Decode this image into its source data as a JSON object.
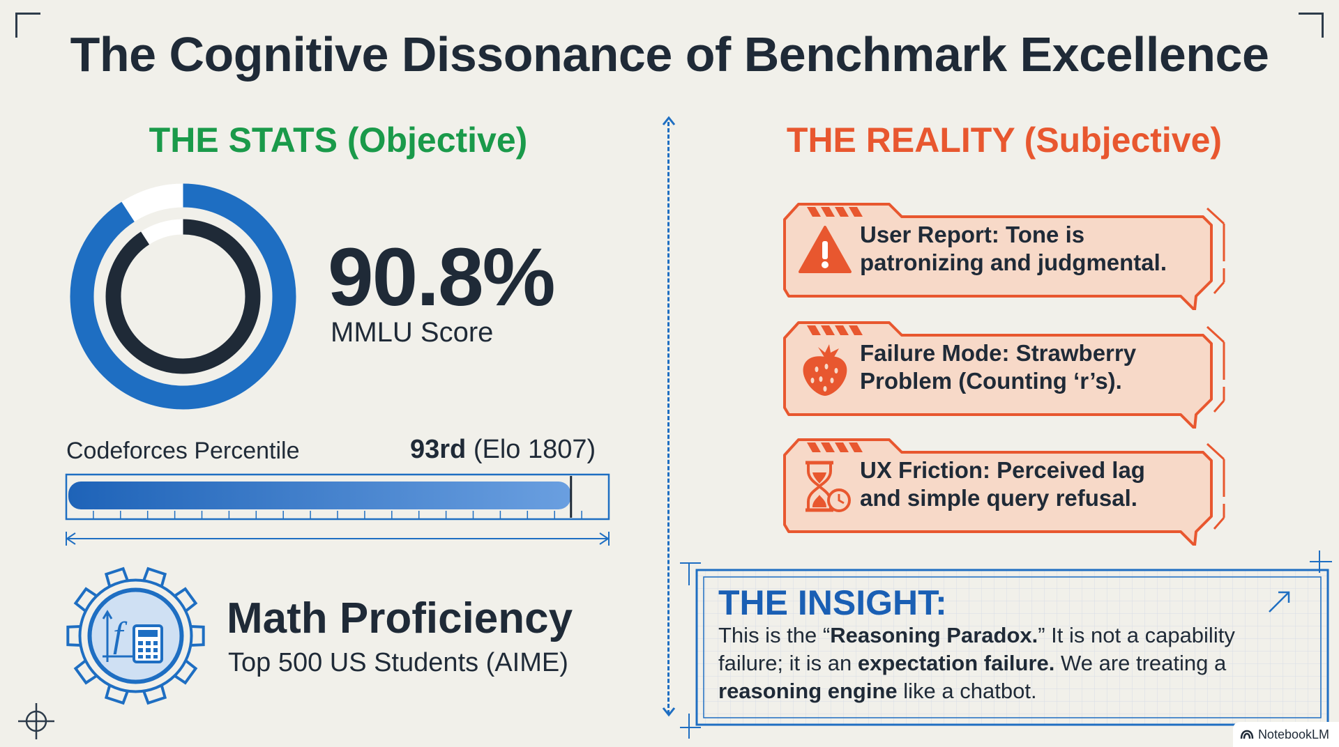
{
  "title": "The Cognitive Dissonance of Benchmark Excellence",
  "stats": {
    "heading": "THE STATS (Objective)",
    "heading_color": "#1a9a4a",
    "mmlu": {
      "value_label": "90.8%",
      "label": "MMLU Score",
      "value": 90.8
    },
    "codeforces": {
      "label": "Codeforces Percentile",
      "rank": "93rd",
      "elo": "(Elo 1807)",
      "percentile": 93
    },
    "math": {
      "title": "Math Proficiency",
      "subtitle": "Top 500 US Students (AIME)",
      "icon": "gear-function-calculator-icon"
    }
  },
  "reality": {
    "heading": "THE REALITY (Subjective)",
    "heading_color": "#e8572f",
    "cards": [
      {
        "icon": "warning-triangle-icon",
        "line1": "User Report: Tone is",
        "line2": "patronizing and judgmental."
      },
      {
        "icon": "strawberry-icon",
        "line1": "Failure Mode: Strawberry",
        "line2": "Problem (Counting ‘r’s)."
      },
      {
        "icon": "hourglass-clock-icon",
        "line1": "UX Friction: Perceived lag",
        "line2": "and simple query refusal."
      }
    ]
  },
  "insight": {
    "title": "THE INSIGHT:",
    "p1": "This is the “",
    "b1": "Reasoning Paradox.",
    "p2": "” It is not a capability failure; it is an ",
    "b2": "expectation failure.",
    "p3": " We are treating a ",
    "b3": "reasoning engine",
    "p4": " like a chatbot."
  },
  "badge": {
    "label": "NotebookLM"
  },
  "colors": {
    "blue": "#1e6ec2",
    "dark": "#1f2a37",
    "orange": "#e8572f",
    "card_fill": "#f7d9c8",
    "card_stroke": "#e8572f"
  }
}
